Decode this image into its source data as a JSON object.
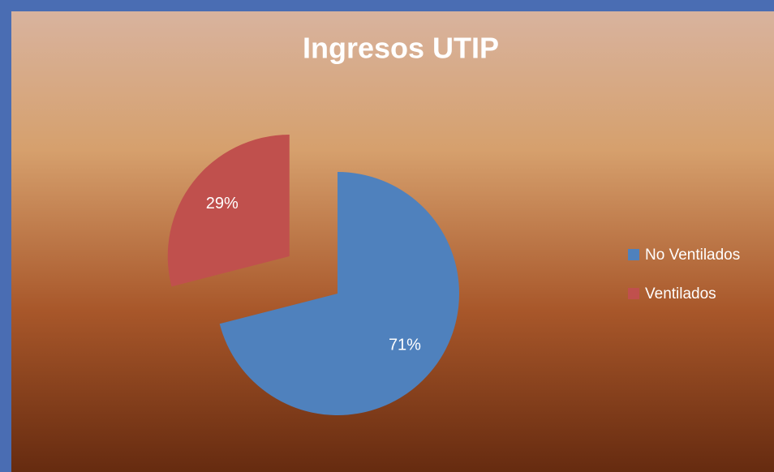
{
  "chart_data": {
    "type": "pie",
    "title": "Ingresos UTIP",
    "categories": [
      "No Ventilados",
      "Ventilados"
    ],
    "values": [
      71,
      29
    ],
    "value_labels": [
      "71%",
      "29%"
    ],
    "colors": [
      "#4f81bd",
      "#c0504d"
    ],
    "explode": [
      0,
      0.5
    ],
    "legend": "right"
  }
}
